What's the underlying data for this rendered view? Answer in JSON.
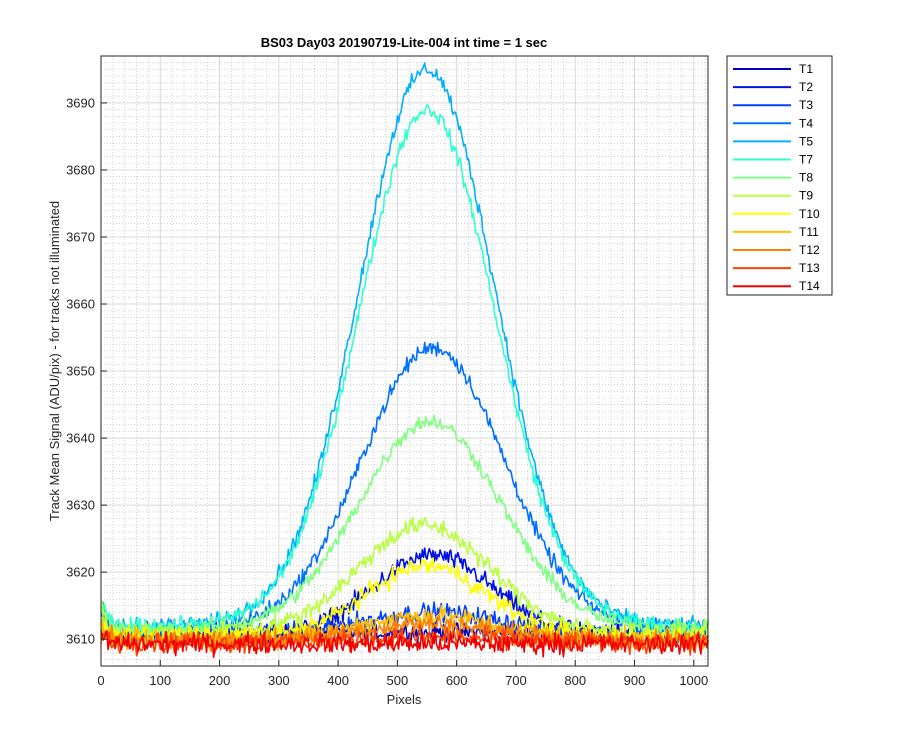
{
  "chart_data": {
    "type": "line",
    "title": "BS03 Day03 20190719-Lite-004 int time = 1 sec",
    "xlabel": "Pixels",
    "ylabel": "Track Mean Signal (ADU/pix) - for tracks not illuminated",
    "xlim": [
      0,
      1024
    ],
    "ylim": [
      3606,
      3697
    ],
    "xticks": [
      0,
      100,
      200,
      300,
      400,
      500,
      600,
      700,
      800,
      900,
      1000
    ],
    "yticks": [
      3610,
      3620,
      3630,
      3640,
      3650,
      3660,
      3670,
      3680,
      3690
    ],
    "grid": true,
    "minor_grid": true,
    "legend_position": "outside-top-right",
    "noise_note": "Each series is a noisy per-pixel profile; the baseline and a Gaussian peak are given below.",
    "series": [
      {
        "name": "T1",
        "color": "#0000b8",
        "baseline": 3611.0,
        "peak_amp": 0.0,
        "peak_center": 560,
        "peak_width": 105,
        "noise": 1.2
      },
      {
        "name": "T2",
        "color": "#0010e0",
        "baseline": 3610.5,
        "peak_amp": 12.0,
        "peak_center": 560,
        "peak_width": 100,
        "noise": 1.2
      },
      {
        "name": "T3",
        "color": "#0040ff",
        "baseline": 3611.0,
        "peak_amp": 3.0,
        "peak_center": 560,
        "peak_width": 110,
        "noise": 1.2
      },
      {
        "name": "T4",
        "color": "#0070ff",
        "baseline": 3611.5,
        "peak_amp": 42.0,
        "peak_center": 560,
        "peak_width": 120,
        "noise": 1.0
      },
      {
        "name": "T5",
        "color": "#00b0ff",
        "baseline": 3612.0,
        "peak_amp": 83.0,
        "peak_center": 550,
        "peak_width": 115,
        "noise": 1.0
      },
      {
        "name": "T7",
        "color": "#30ffd0",
        "baseline": 3612.0,
        "peak_amp": 77.0,
        "peak_center": 550,
        "peak_width": 115,
        "noise": 1.0
      },
      {
        "name": "T8",
        "color": "#80ff80",
        "baseline": 3611.5,
        "peak_amp": 31.0,
        "peak_center": 555,
        "peak_width": 120,
        "noise": 1.0
      },
      {
        "name": "T9",
        "color": "#b8ff40",
        "baseline": 3611.0,
        "peak_amp": 16.0,
        "peak_center": 545,
        "peak_width": 110,
        "noise": 1.2
      },
      {
        "name": "T10",
        "color": "#ffff00",
        "baseline": 3610.5,
        "peak_amp": 10.5,
        "peak_center": 550,
        "peak_width": 100,
        "noise": 1.2
      },
      {
        "name": "T11",
        "color": "#ffbf00",
        "baseline": 3610.0,
        "peak_amp": 3.5,
        "peak_center": 550,
        "peak_width": 110,
        "noise": 1.3
      },
      {
        "name": "T12",
        "color": "#ff8000",
        "baseline": 3609.8,
        "peak_amp": 2.5,
        "peak_center": 550,
        "peak_width": 110,
        "noise": 1.3
      },
      {
        "name": "T13",
        "color": "#ff4000",
        "baseline": 3609.5,
        "peak_amp": 0.8,
        "peak_center": 550,
        "peak_width": 110,
        "noise": 1.3
      },
      {
        "name": "T14",
        "color": "#f00000",
        "baseline": 3609.3,
        "peak_amp": 0.0,
        "peak_center": 550,
        "peak_width": 110,
        "noise": 1.3
      }
    ]
  }
}
